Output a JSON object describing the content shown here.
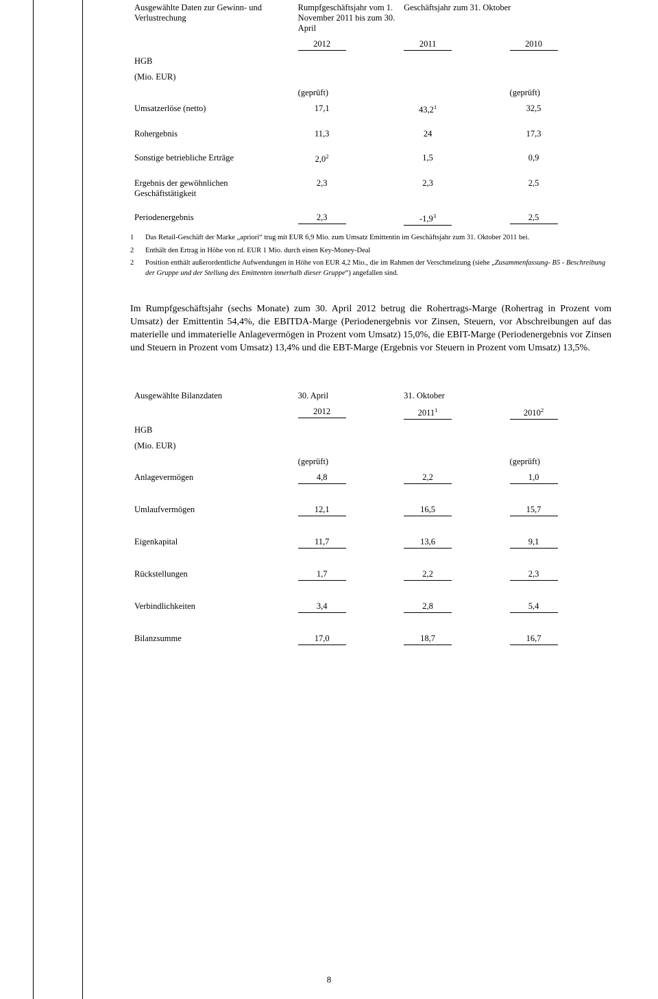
{
  "table1": {
    "title": "Ausgewählte Daten zur Gewinn- und Verlustrechung",
    "col1_header": "Rumpfgeschäftsjahr vom 1. November 2011 bis zum 30. April",
    "col23_header": "Geschäftsjahr zum 31. Oktober",
    "years": {
      "c1": "2012",
      "c2": "2011",
      "c3": "2010"
    },
    "hgb1": "HGB",
    "hgb2": "(Mio. EUR)",
    "geprueft": "(geprüft)",
    "rows": [
      {
        "label": "Umsatzerlöse (netto)",
        "v1": "17,1",
        "v2": "43,2",
        "v2sup": "1",
        "v3": "32,5",
        "uline": false
      },
      {
        "label": "Rohergebnis",
        "v1": "11,3",
        "v2": "24",
        "v3": "17,3",
        "uline": false
      },
      {
        "label": "Sonstige betriebliche Erträge",
        "v1": "2,0",
        "v1sup": "2",
        "v2": "1,5",
        "v3": "0,9",
        "uline": false
      },
      {
        "label": "Ergebnis der gewöhnlichen Geschäftstätigkeit",
        "v1": "2,3",
        "v2": "2,3",
        "v3": "2,5",
        "uline": false
      },
      {
        "label": "Periodenergebnis",
        "v1": "2,3",
        "v2": "-1,9",
        "v2sup": "3",
        "v3": "2,5",
        "uline": true
      }
    ]
  },
  "footnotes": [
    {
      "n": "1",
      "t": "Das Retail-Geschäft der Marke „apriori“ trug mit EUR 6,9 Mio. zum Umsatz Emittentin im Geschäftsjahr zum 31. Oktober 2011 bei."
    },
    {
      "n": "2",
      "t": "Enthält den Ertrag in Höhe von rd. EUR 1 Mio. durch einen Key-Money-Deal"
    },
    {
      "n": "2",
      "t": "Position enthält außerordentliche Aufwendungen in Höhe von EUR 4,2 Mio., die im Rahmen der Verschmelzung (siehe „",
      "ital": "Zusammenfassung- B5 - Beschreibung der Gruppe und der Stellung des Emittenten innerhalb dieser Gruppe",
      "t2": "“) angefallen sind."
    }
  ],
  "paragraph": "Im Rumpfgeschäftsjahr (sechs Monate) zum 30. April 2012 betrug die Rohertrags-Marge (Rohertrag in Prozent vom Umsatz) der Emittentin 54,4%, die EBITDA-Marge (Periodenergebnis vor Zinsen, Steuern, vor Abschreibungen auf das materielle und immaterielle Anlagevermögen in Prozent vom Umsatz) 15,0%, die EBIT-Marge (Periodenergebnis vor Zinsen und Steuern in Prozent vom Umsatz) 13,4% und die EBT-Marge (Ergebnis vor Steuern in Prozent vom Umsatz) 13,5%.",
  "table2": {
    "title": "Ausgewählte Bilanzdaten",
    "col1_header": "30. April",
    "col23_header": "31. Oktober",
    "years": {
      "c1": "2012",
      "c2": "2011",
      "c2sup": "1",
      "c3": "2010",
      "c3sup": "2"
    },
    "hgb1": "HGB",
    "hgb2": "(Mio. EUR)",
    "geprueft": "(geprüft)",
    "rows": [
      {
        "label": "Anlagevermögen",
        "v1": "4,8",
        "v2": "2,2",
        "v3": "1,0"
      },
      {
        "label": "Umlaufvermögen",
        "v1": "12,1",
        "v2": "16,5",
        "v3": "15,7"
      },
      {
        "label": "Eigenkapital",
        "v1": "11,7",
        "v2": "13,6",
        "v3": "9,1"
      },
      {
        "label": "Rückstellungen",
        "v1": "1,7",
        "v2": "2,2",
        "v3": "2,3"
      },
      {
        "label": "Verbindlichkeiten",
        "v1": "3,4",
        "v2": "2,8",
        "v3": "5,4"
      },
      {
        "label": "Bilanzsumme",
        "v1": "17,0",
        "v2": "18,7",
        "v3": "16,7"
      }
    ]
  },
  "page_number": "8"
}
